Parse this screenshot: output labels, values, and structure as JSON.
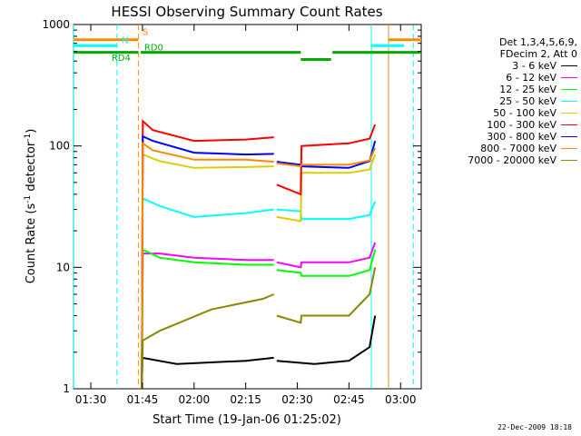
{
  "chart_data": {
    "type": "line",
    "title": "HESSI Observing Summary Count Rates",
    "xlabel": "Start Time (19-Jan-06 01:25:02)",
    "ylabel_main": "Count Rate (s",
    "ylabel_sup1": "-1",
    "ylabel_mid": " detector",
    "ylabel_sup2": "-1",
    "ylabel_end": ")",
    "yscale": "log",
    "ylim": [
      1,
      1000
    ],
    "xlim_minutes": [
      -0.03,
      101
    ],
    "x_ticks": [
      {
        "m": 5,
        "label": "01:30"
      },
      {
        "m": 20,
        "label": "01:45"
      },
      {
        "m": 35,
        "label": "02:00"
      },
      {
        "m": 50,
        "label": "02:15"
      },
      {
        "m": 65,
        "label": "02:30"
      },
      {
        "m": 80,
        "label": "02:45"
      },
      {
        "m": 95,
        "label": "03:00"
      }
    ],
    "y_ticks": [
      {
        "v": 1,
        "label": "1"
      },
      {
        "v": 10,
        "label": "10"
      },
      {
        "v": 100,
        "label": "100"
      },
      {
        "v": 1000,
        "label": "1000"
      }
    ],
    "legend_header": [
      "Det 1,3,4,5,6,9,",
      "FDecim 2, Att 0"
    ],
    "series": [
      {
        "name": "3 - 6 keV",
        "color": "#000000",
        "segments": [
          [
            [
              19.8,
              1
            ],
            [
              20,
              1.8
            ],
            [
              30,
              1.6
            ],
            [
              50,
              1.7
            ],
            [
              58.2,
              1.8
            ]
          ],
          [
            [
              59,
              1.7
            ],
            [
              70,
              1.6
            ],
            [
              80,
              1.7
            ],
            [
              86,
              2.2
            ],
            [
              87.6,
              4
            ]
          ]
        ]
      },
      {
        "name": "6 - 12 keV",
        "color": "#ff00ff",
        "segments": [
          [
            [
              19.8,
              1
            ],
            [
              20.1,
              13
            ],
            [
              25,
              13
            ],
            [
              35,
              12
            ],
            [
              50,
              11.5
            ],
            [
              58.2,
              11.5
            ]
          ],
          [
            [
              59,
              11
            ],
            [
              66,
              10
            ],
            [
              66.2,
              11
            ],
            [
              80,
              11
            ],
            [
              86,
              12
            ],
            [
              87.6,
              16
            ]
          ]
        ]
      },
      {
        "name": "12 - 25 keV",
        "color": "#00ff00",
        "segments": [
          [
            [
              19.8,
              1
            ],
            [
              20.1,
              14
            ],
            [
              25,
              12
            ],
            [
              35,
              11
            ],
            [
              50,
              10.5
            ],
            [
              58.2,
              10.5
            ]
          ],
          [
            [
              59,
              9.5
            ],
            [
              66,
              9
            ],
            [
              66.2,
              8.5
            ],
            [
              80,
              8.5
            ],
            [
              86,
              9.5
            ],
            [
              87.6,
              14
            ]
          ]
        ]
      },
      {
        "name": "25 - 50 keV",
        "color": "#00ffff",
        "segments": [
          [
            [
              19.8,
              1
            ],
            [
              20.1,
              37
            ],
            [
              25,
              32
            ],
            [
              35,
              26
            ],
            [
              50,
              28
            ],
            [
              58.2,
              30
            ]
          ],
          [
            [
              59,
              30
            ],
            [
              66,
              29
            ],
            [
              66.2,
              25
            ],
            [
              80,
              25
            ],
            [
              86,
              27
            ],
            [
              87.6,
              35
            ]
          ]
        ]
      },
      {
        "name": "50 - 100 keV",
        "color": "#ddcc00",
        "segments": [
          [
            [
              19.8,
              1
            ],
            [
              20.1,
              85
            ],
            [
              25,
              75
            ],
            [
              35,
              66
            ],
            [
              50,
              67
            ],
            [
              58.2,
              68
            ]
          ],
          [
            [
              59,
              26
            ],
            [
              66,
              24
            ],
            [
              66.2,
              60
            ],
            [
              80,
              60
            ],
            [
              86,
              64
            ],
            [
              87.6,
              85
            ]
          ]
        ]
      },
      {
        "name": "100 - 300 keV",
        "color": "#ff0000",
        "segments": [
          [
            [
              19.8,
              1
            ],
            [
              20.1,
              160
            ],
            [
              23,
              135
            ],
            [
              35,
              110
            ],
            [
              50,
              113
            ],
            [
              58.2,
              118
            ]
          ],
          [
            [
              59,
              48
            ],
            [
              66,
              40
            ],
            [
              66.2,
              100
            ],
            [
              80,
              105
            ],
            [
              86,
              115
            ],
            [
              87.6,
              150
            ]
          ]
        ]
      },
      {
        "name": "300 - 800 keV",
        "color": "#0000ff",
        "segments": [
          [
            [
              19.8,
              1
            ],
            [
              20.1,
              120
            ],
            [
              23,
              110
            ],
            [
              35,
              88
            ],
            [
              50,
              85
            ],
            [
              58.2,
              86
            ]
          ],
          [
            [
              59,
              74
            ],
            [
              66,
              70
            ],
            [
              66.2,
              68
            ],
            [
              80,
              66
            ],
            [
              86,
              75
            ],
            [
              87.6,
              110
            ]
          ]
        ]
      },
      {
        "name": "800 - 7000 keV",
        "color": "#ff8800",
        "segments": [
          [
            [
              19.8,
              1
            ],
            [
              20.1,
              105
            ],
            [
              23,
              92
            ],
            [
              35,
              77
            ],
            [
              50,
              77
            ],
            [
              58.2,
              74
            ]
          ],
          [
            [
              59,
              72
            ],
            [
              66,
              68
            ],
            [
              66.2,
              70
            ],
            [
              80,
              70
            ],
            [
              86,
              76
            ],
            [
              87.6,
              96
            ]
          ]
        ]
      },
      {
        "name": "7000 - 20000 keV",
        "color": "#888800",
        "segments": [
          [
            [
              19.8,
              1
            ],
            [
              20.1,
              2.5
            ],
            [
              25,
              3
            ],
            [
              40,
              4.5
            ],
            [
              55,
              5.5
            ],
            [
              58.2,
              6
            ]
          ],
          [
            [
              59,
              4
            ],
            [
              66,
              3.5
            ],
            [
              66.2,
              4
            ],
            [
              80,
              4
            ],
            [
              86,
              6
            ],
            [
              87.6,
              10
            ]
          ]
        ]
      }
    ],
    "vertical_lines": [
      {
        "m": 0,
        "color": "#00ffff",
        "dash": false
      },
      {
        "m": 12.6,
        "color": "#00ffff",
        "dash": true
      },
      {
        "m": 18.8,
        "color": "#ff8800",
        "dash": true
      },
      {
        "m": 86.5,
        "color": "#00ffff",
        "dash": false
      },
      {
        "m": 91.5,
        "color": "#ff8800",
        "dash": false
      },
      {
        "m": 98.7,
        "color": "#00ffff",
        "dash": true
      }
    ],
    "bars": [
      {
        "label": "S",
        "color": "#ff8800",
        "segments": [
          [
            0,
            18.8,
            750
          ],
          [
            91.5,
            101,
            750
          ]
        ]
      },
      {
        "label": "N",
        "color": "#00ffff",
        "segments": [
          [
            0,
            12.6,
            670
          ],
          [
            86.5,
            96,
            670
          ]
        ]
      },
      {
        "label": "RD4",
        "color": "#00aa00",
        "segments": [
          [
            0,
            18.8,
            590
          ]
        ]
      },
      {
        "label": "RD0",
        "color": "#00aa00",
        "segments": [
          [
            19.5,
            66,
            590
          ],
          [
            66,
            74.8,
            515
          ],
          [
            75.2,
            101,
            590
          ]
        ]
      }
    ],
    "bar_labels": [
      {
        "text": "S",
        "m": 20,
        "v": 820,
        "color": "#ff8800"
      },
      {
        "text": "N",
        "m": 14,
        "v": 700,
        "color": "#00ffff"
      },
      {
        "text": "RD4",
        "m": 11,
        "v": 500,
        "color": "#00aa00"
      },
      {
        "text": "RD0",
        "m": 20.5,
        "v": 610,
        "color": "#00aa00"
      }
    ],
    "grid": false,
    "legend_position": "right"
  },
  "footer": {
    "date_stamp": "22-Dec-2009 18:18"
  }
}
